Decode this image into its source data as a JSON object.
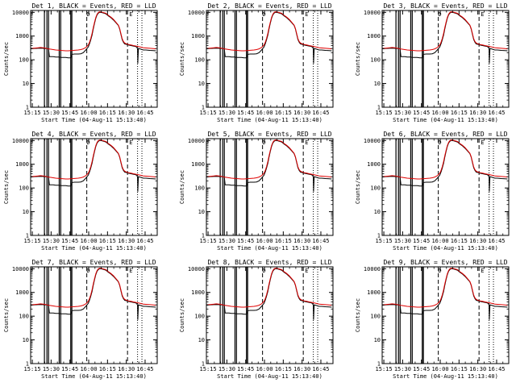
{
  "figure": {
    "background": "#ffffff",
    "axis_color": "#000000",
    "events_color": "#000000",
    "lld_color": "#e00000"
  },
  "chart_data": {
    "type": "line",
    "layout": "3x3 grid of panels",
    "xlabel": "Start Time (04-Aug-11 15:13:40)",
    "ylabel": "Counts/sec",
    "xscale": "time (minutes after 15:13:40)",
    "yscale": "log",
    "ylim": [
      1,
      12000
    ],
    "xlim": [
      0,
      101
    ],
    "x_ticks": [
      {
        "minute": 1.33,
        "label": "15:15"
      },
      {
        "minute": 16.33,
        "label": "15:30"
      },
      {
        "minute": 31.33,
        "label": "15:45"
      },
      {
        "minute": 46.33,
        "label": "16:00"
      },
      {
        "minute": 61.33,
        "label": "16:15"
      },
      {
        "minute": 76.33,
        "label": "16:30"
      },
      {
        "minute": 91.33,
        "label": "16:45"
      }
    ],
    "y_ticks": [
      {
        "value": 1,
        "label": "1"
      },
      {
        "value": 10,
        "label": "10"
      },
      {
        "value": 100,
        "label": "100"
      },
      {
        "value": 1000,
        "label": "1000"
      },
      {
        "value": 10000,
        "label": "10000"
      }
    ],
    "annotations": [
      {
        "minute": 46.0,
        "label": "D"
      },
      {
        "minute": 80.0,
        "label": "E"
      }
    ],
    "solid_vlines": [
      11.0,
      13.0,
      14.3,
      22.8,
      24.0,
      32.0,
      32.9
    ],
    "dashed_vlines": [
      44.8,
      77.3
    ],
    "dotted_vlines": [
      85.3,
      88.8
    ],
    "series": [
      {
        "name": "Events",
        "color": "#000000",
        "points": [
          [
            0,
            290
          ],
          [
            3,
            300
          ],
          [
            6,
            305
          ],
          [
            9,
            310
          ],
          [
            11,
            300
          ],
          [
            13,
            300
          ],
          [
            14.3,
            290
          ],
          [
            15,
            135
          ],
          [
            18,
            135
          ],
          [
            20,
            130
          ],
          [
            22.8,
            130
          ],
          [
            24,
            125
          ],
          [
            26,
            125
          ],
          [
            28,
            125
          ],
          [
            30,
            120
          ],
          [
            32,
            120
          ],
          [
            32.9,
            170
          ],
          [
            35,
            175
          ],
          [
            38,
            175
          ],
          [
            40,
            180
          ],
          [
            42,
            200
          ],
          [
            44,
            260
          ],
          [
            46,
            350
          ],
          [
            47,
            480
          ],
          [
            48,
            700
          ],
          [
            49,
            1100
          ],
          [
            50,
            2000
          ],
          [
            51,
            3500
          ],
          [
            52,
            5600
          ],
          [
            53,
            7800
          ],
          [
            54,
            9300
          ],
          [
            55,
            10000
          ],
          [
            57,
            9800
          ],
          [
            60,
            8700
          ],
          [
            62,
            7100
          ],
          [
            64,
            6000
          ],
          [
            66,
            4800
          ],
          [
            68,
            3700
          ],
          [
            70,
            2800
          ],
          [
            71,
            2000
          ],
          [
            72,
            1200
          ],
          [
            73,
            720
          ],
          [
            74,
            560
          ],
          [
            75,
            470
          ],
          [
            76,
            450
          ],
          [
            77,
            440
          ],
          [
            78,
            420
          ],
          [
            80,
            400
          ],
          [
            82,
            380
          ],
          [
            84,
            360
          ],
          [
            85.3,
            300
          ],
          [
            85.5,
            70
          ],
          [
            86,
            300
          ],
          [
            88,
            280
          ],
          [
            88.8,
            270
          ],
          [
            90,
            260
          ],
          [
            92,
            260
          ],
          [
            95,
            250
          ],
          [
            98,
            245
          ],
          [
            100,
            240
          ]
        ]
      },
      {
        "name": "LLD",
        "color": "#e00000",
        "points": [
          [
            0,
            300
          ],
          [
            3,
            310
          ],
          [
            6,
            320
          ],
          [
            8,
            330
          ],
          [
            10,
            320
          ],
          [
            12,
            310
          ],
          [
            14,
            290
          ],
          [
            16,
            280
          ],
          [
            18,
            270
          ],
          [
            20,
            260
          ],
          [
            22,
            255
          ],
          [
            24,
            250
          ],
          [
            26,
            245
          ],
          [
            28,
            240
          ],
          [
            30,
            240
          ],
          [
            32,
            245
          ],
          [
            34,
            250
          ],
          [
            36,
            255
          ],
          [
            38,
            260
          ],
          [
            40,
            270
          ],
          [
            42,
            290
          ],
          [
            44,
            330
          ],
          [
            46,
            420
          ],
          [
            47,
            560
          ],
          [
            48,
            800
          ],
          [
            49,
            1300
          ],
          [
            50,
            2300
          ],
          [
            51,
            3900
          ],
          [
            52,
            6100
          ],
          [
            53,
            8400
          ],
          [
            54,
            9900
          ],
          [
            55,
            10500
          ],
          [
            57,
            10200
          ],
          [
            60,
            9100
          ],
          [
            62,
            7500
          ],
          [
            64,
            6300
          ],
          [
            66,
            5100
          ],
          [
            68,
            3900
          ],
          [
            70,
            2900
          ],
          [
            71,
            2100
          ],
          [
            72,
            1300
          ],
          [
            73,
            780
          ],
          [
            74,
            600
          ],
          [
            75,
            510
          ],
          [
            76,
            480
          ],
          [
            77,
            460
          ],
          [
            78,
            440
          ],
          [
            80,
            420
          ],
          [
            82,
            400
          ],
          [
            84,
            380
          ],
          [
            86,
            360
          ],
          [
            88,
            340
          ],
          [
            90,
            320
          ],
          [
            92,
            315
          ],
          [
            95,
            305
          ],
          [
            98,
            295
          ],
          [
            100,
            290
          ]
        ]
      }
    ],
    "panels": [
      {
        "title": "Det 1, BLACK = Events, RED = LLD"
      },
      {
        "title": "Det 2, BLACK = Events, RED = LLD"
      },
      {
        "title": "Det 3, BLACK = Events, RED = LLD"
      },
      {
        "title": "Det 4, BLACK = Events, RED = LLD"
      },
      {
        "title": "Det 5, BLACK = Events, RED = LLD"
      },
      {
        "title": "Det 6, BLACK = Events, RED = LLD"
      },
      {
        "title": "Det 7, BLACK = Events, RED = LLD"
      },
      {
        "title": "Det 8, BLACK = Events, RED = LLD"
      },
      {
        "title": "Det 9, BLACK = Events, RED = LLD"
      }
    ]
  }
}
